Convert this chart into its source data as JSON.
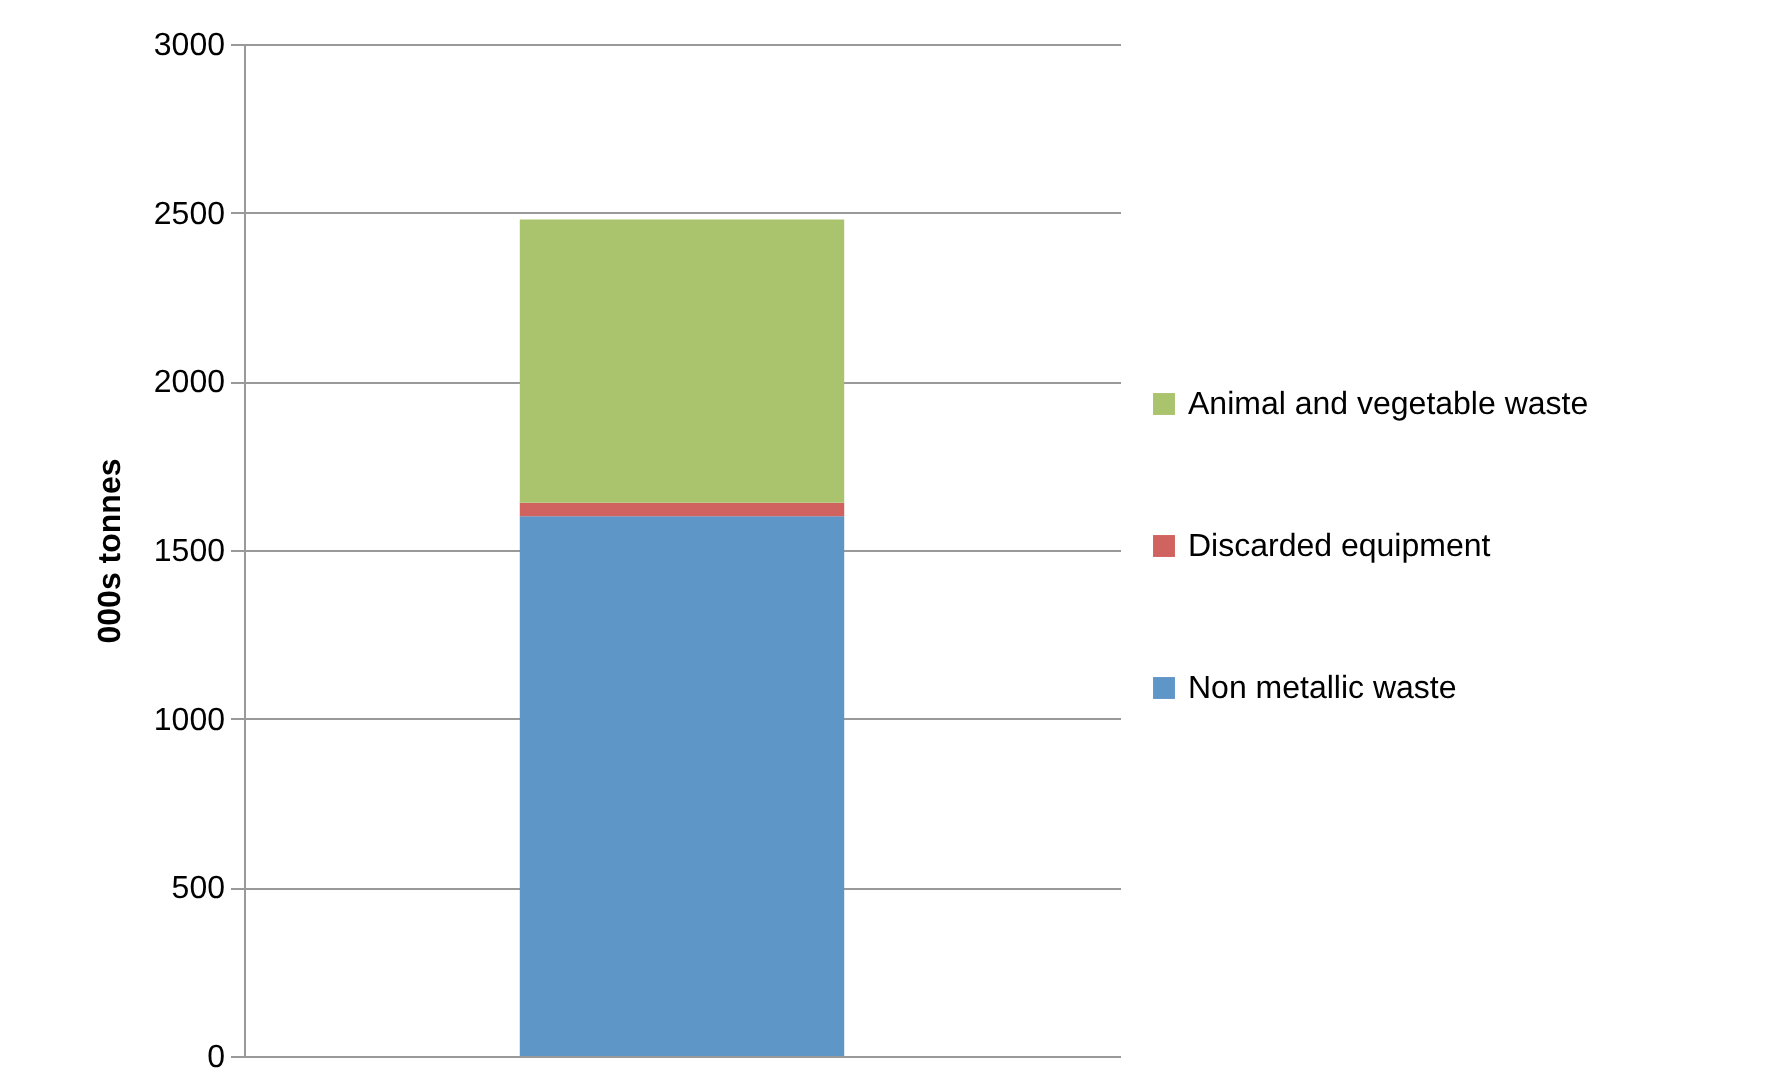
{
  "chart_data": {
    "type": "bar",
    "stacked": true,
    "categories": [
      null
    ],
    "ylabel": "000s tonnes",
    "ylim": [
      0,
      3000
    ],
    "yticks": [
      0,
      500,
      {
        "value": 1000,
        "label": "1000"
      },
      {
        "value": 1500,
        "label": "1500"
      },
      {
        "value": 2000,
        "label": "2000"
      },
      {
        "value": 2500,
        "label": "2500"
      },
      {
        "value": 3000,
        "label": "3000"
      }
    ],
    "grid": "y",
    "legend": "right",
    "tick_labels": "y",
    "series": [
      {
        "name": "Non metallic waste",
        "color": "#5f96c8",
        "values": [
          1600
        ]
      },
      {
        "name": "Discarded equipment",
        "color": "#d0625f",
        "values": [
          40
        ]
      },
      {
        "name": "Animal and vegetable waste",
        "color": "#aac46e",
        "values": [
          840
        ]
      }
    ]
  }
}
